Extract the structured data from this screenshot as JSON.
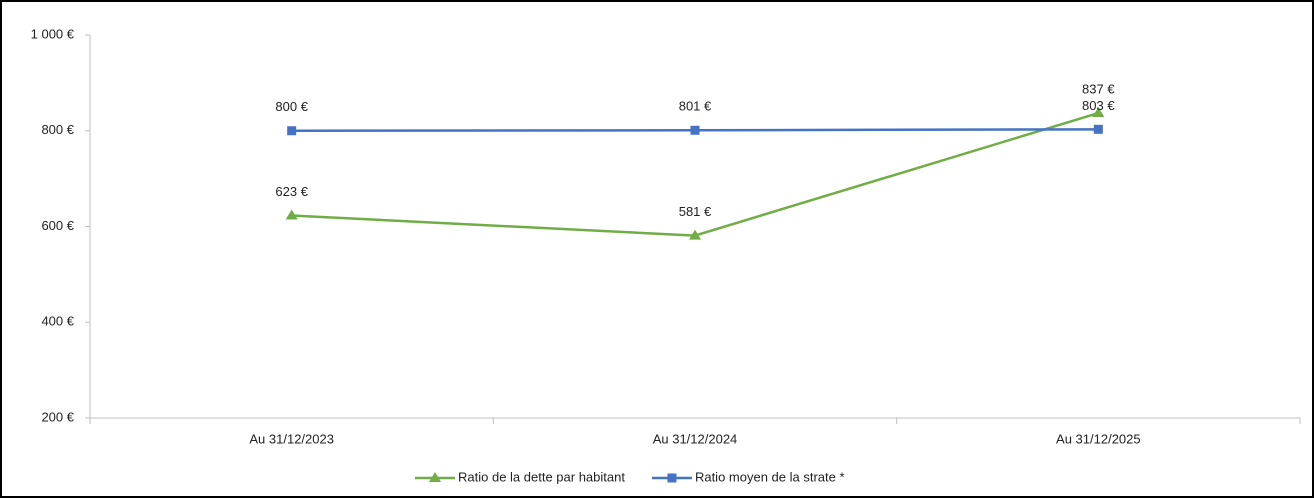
{
  "chart_data": {
    "type": "line",
    "categories": [
      "Au 31/12/2023",
      "Au 31/12/2024",
      "Au 31/12/2025"
    ],
    "series": [
      {
        "name": "Ratio de la dette par habitant",
        "color": "#70ad47",
        "marker": "triangle",
        "values": [
          623,
          581,
          837
        ],
        "value_labels": [
          "623 €",
          "581 €",
          "837 €"
        ]
      },
      {
        "name": "Ratio moyen de la strate *",
        "color": "#4472c4",
        "marker": "square",
        "values": [
          800,
          801,
          803
        ],
        "value_labels": [
          "800 €",
          "801 €",
          "803 €"
        ]
      }
    ],
    "ylim": [
      200,
      1000
    ],
    "yticks": [
      {
        "value": 200,
        "label": "200 €"
      },
      {
        "value": 400,
        "label": "400 €"
      },
      {
        "value": 600,
        "label": "600 €"
      },
      {
        "value": 800,
        "label": "800 €"
      },
      {
        "value": 1000,
        "label": "1 000 €"
      }
    ],
    "grid": false,
    "legend": "bottom"
  }
}
